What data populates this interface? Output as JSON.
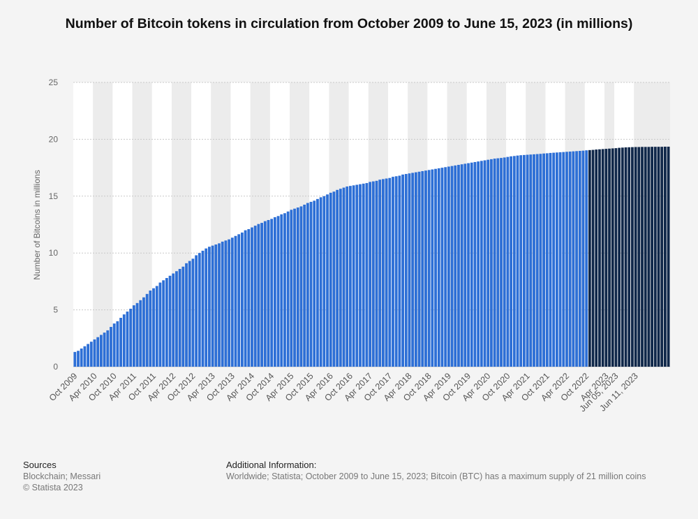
{
  "title": "Number of Bitcoin tokens in circulation from October 2009 to June 15, 2023 (in millions)",
  "chart_data": {
    "type": "bar",
    "ylabel": "Number of Bitcoins in millions",
    "xlabel": "",
    "ylim": [
      0,
      25
    ],
    "yticks": [
      0,
      5,
      10,
      15,
      20,
      25
    ],
    "grid": true,
    "legend": "none",
    "colors": {
      "monthly": "#2d6fd6",
      "daily": "#10284a",
      "grid": "#c8c8c8",
      "band": "#ffffff",
      "band_alt": "#ececec"
    },
    "xtick_labels": [
      "Oct 2009",
      "Apr 2010",
      "Oct 2010",
      "Apr 2011",
      "Oct 2011",
      "Apr 2012",
      "Oct 2012",
      "Apr 2013",
      "Oct 2013",
      "Apr 2014",
      "Oct 2014",
      "Apr 2015",
      "Oct 2015",
      "Apr 2016",
      "Oct 2016",
      "Apr 2017",
      "Oct 2017",
      "Apr 2018",
      "Oct 2018",
      "Apr 2019",
      "Oct 2019",
      "Apr 2020",
      "Oct 2020",
      "Apr 2021",
      "Oct 2021",
      "Apr 2022",
      "Oct 2022",
      "Apr 2023",
      "Jun 05, 2023",
      "Jun 11, 2023"
    ],
    "values": [
      1.3,
      1.4,
      1.6,
      1.8,
      2.0,
      2.2,
      2.4,
      2.6,
      2.8,
      3.0,
      3.2,
      3.5,
      3.8,
      4.0,
      4.3,
      4.6,
      4.85,
      5.1,
      5.4,
      5.6,
      5.85,
      6.1,
      6.4,
      6.7,
      6.9,
      7.1,
      7.4,
      7.6,
      7.8,
      8.0,
      8.2,
      8.4,
      8.6,
      8.8,
      9.1,
      9.3,
      9.5,
      9.8,
      10.0,
      10.2,
      10.4,
      10.55,
      10.65,
      10.75,
      10.85,
      11.0,
      11.1,
      11.2,
      11.35,
      11.5,
      11.65,
      11.8,
      12.0,
      12.1,
      12.25,
      12.4,
      12.55,
      12.65,
      12.8,
      12.9,
      13.0,
      13.15,
      13.25,
      13.4,
      13.5,
      13.65,
      13.8,
      13.9,
      14.0,
      14.1,
      14.25,
      14.4,
      14.5,
      14.6,
      14.75,
      14.9,
      15.0,
      15.15,
      15.3,
      15.4,
      15.55,
      15.65,
      15.75,
      15.85,
      15.9,
      15.95,
      16.0,
      16.05,
      16.1,
      16.15,
      16.25,
      16.3,
      16.35,
      16.45,
      16.5,
      16.55,
      16.6,
      16.7,
      16.75,
      16.8,
      16.9,
      16.95,
      17.0,
      17.05,
      17.1,
      17.15,
      17.2,
      17.25,
      17.3,
      17.35,
      17.4,
      17.45,
      17.5,
      17.55,
      17.6,
      17.65,
      17.7,
      17.75,
      17.8,
      17.85,
      17.9,
      17.95,
      18.0,
      18.05,
      18.1,
      18.15,
      18.2,
      18.25,
      18.3,
      18.33,
      18.36,
      18.4,
      18.45,
      18.5,
      18.53,
      18.57,
      18.6,
      18.62,
      18.64,
      18.66,
      18.68,
      18.7,
      18.72,
      18.75,
      18.77,
      18.8,
      18.82,
      18.84,
      18.86,
      18.88,
      18.9,
      18.92,
      18.94,
      18.96,
      18.98,
      19.0,
      19.03,
      19.05,
      19.07,
      19.1,
      19.12,
      19.14,
      19.16,
      19.18,
      19.2,
      19.22,
      19.25,
      19.27,
      19.29,
      19.3,
      19.31,
      19.32,
      19.32,
      19.33,
      19.33,
      19.33,
      19.34,
      19.34,
      19.34,
      19.34,
      19.35,
      19.35
    ]
  },
  "footer": {
    "sources_heading": "Sources",
    "sources_line1": "Blockchain; Messari",
    "sources_line2": "© Statista 2023",
    "additional_heading": "Additional Information:",
    "additional_text": "Worldwide; Statista; October 2009 to June 15, 2023; Bitcoin (BTC) has a maximum supply of 21 million coins"
  }
}
